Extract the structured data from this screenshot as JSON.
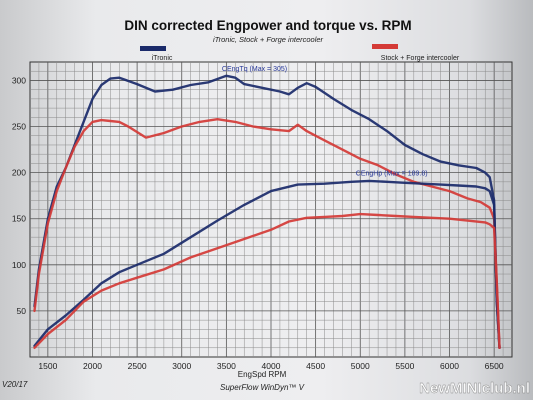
{
  "chart_data": {
    "type": "line",
    "title": "DIN corrected Engpower and torque vs. RPM",
    "subtitle": "iTronic, Stock + Forge intercooler",
    "xlabel": "EngSpd  RPM",
    "ylabel": "",
    "xlim": [
      1300,
      6700
    ],
    "ylim": [
      0,
      320
    ],
    "x_ticks": [
      1500,
      2000,
      2500,
      3000,
      3500,
      4000,
      4500,
      5000,
      5500,
      6000,
      6500
    ],
    "y_ticks": [
      50,
      100,
      150,
      200,
      250,
      300
    ],
    "grid": true,
    "legend": [
      {
        "name": "iTronic",
        "color": "#1a2a6a"
      },
      {
        "name": "Stock + Forge intercooler",
        "color": "#d43a36"
      }
    ],
    "annotations": [
      {
        "text": "CEngTq (Max = 305)",
        "x": 3450,
        "y": 310
      },
      {
        "text": "CEngHp (Max = 189.8)",
        "x": 4950,
        "y": 197
      }
    ],
    "series": [
      {
        "name": "iTronic",
        "color": "#1a2a6a",
        "x": [
          1350,
          1400,
          1500,
          1600,
          1700,
          1800,
          1900,
          2000,
          2100,
          2200,
          2300,
          2500,
          2700,
          2900,
          3100,
          3300,
          3500,
          3600,
          3700,
          3900,
          4100,
          4200,
          4300,
          4400,
          4500,
          4700,
          4900,
          5100,
          5300,
          5500,
          5700,
          5900,
          6100,
          6300,
          6400,
          6450,
          6500,
          6530,
          6560
        ],
        "values": [
          55,
          95,
          150,
          185,
          205,
          230,
          255,
          280,
          295,
          302,
          303,
          296,
          288,
          290,
          295,
          298,
          305,
          303,
          296,
          292,
          288,
          285,
          292,
          297,
          293,
          280,
          268,
          258,
          245,
          230,
          220,
          212,
          208,
          205,
          200,
          195,
          170,
          60,
          10
        ]
      },
      {
        "name": "Stock + Forge intercooler",
        "color": "#d43a36",
        "x": [
          1350,
          1400,
          1500,
          1600,
          1700,
          1800,
          1900,
          2000,
          2100,
          2200,
          2300,
          2400,
          2600,
          2800,
          3000,
          3200,
          3400,
          3600,
          3800,
          4000,
          4200,
          4300,
          4400,
          4600,
          4800,
          5000,
          5200,
          5400,
          5600,
          5800,
          6000,
          6200,
          6350,
          6450,
          6500,
          6530,
          6560
        ],
        "values": [
          50,
          90,
          145,
          180,
          205,
          228,
          245,
          255,
          257,
          256,
          255,
          250,
          238,
          243,
          250,
          255,
          258,
          255,
          250,
          247,
          245,
          252,
          245,
          235,
          225,
          215,
          208,
          198,
          190,
          185,
          180,
          172,
          168,
          162,
          150,
          80,
          10
        ]
      },
      {
        "name": "",
        "color": "#1a2a6a",
        "x": [
          1350,
          1500,
          1700,
          1900,
          2100,
          2300,
          2500,
          2800,
          3100,
          3400,
          3700,
          4000,
          4300,
          4600,
          4900,
          5100,
          5300,
          5500,
          5700,
          5900,
          6100,
          6300,
          6400,
          6450,
          6500,
          6530,
          6560
        ],
        "values": [
          12,
          30,
          45,
          62,
          80,
          92,
          100,
          112,
          130,
          148,
          165,
          180,
          187,
          188,
          190,
          191,
          190,
          189,
          188,
          187,
          186,
          185,
          183,
          180,
          165,
          60,
          10
        ]
      },
      {
        "name": "",
        "color": "#d43a36",
        "x": [
          1350,
          1500,
          1700,
          1900,
          2100,
          2300,
          2500,
          2800,
          3100,
          3400,
          3700,
          4000,
          4200,
          4400,
          4600,
          4800,
          5000,
          5200,
          5400,
          5600,
          5800,
          6000,
          6200,
          6400,
          6450,
          6500,
          6530,
          6560
        ],
        "values": [
          10,
          25,
          40,
          60,
          72,
          80,
          86,
          95,
          108,
          118,
          128,
          138,
          147,
          151,
          152,
          153,
          155,
          154,
          153,
          152,
          151,
          150,
          148,
          146,
          144,
          140,
          80,
          10
        ]
      }
    ]
  },
  "footer": {
    "software": "SuperFlow WinDyn™ V",
    "date_fragment": "V20/17",
    "watermark": "NewMINIclub.nl"
  }
}
